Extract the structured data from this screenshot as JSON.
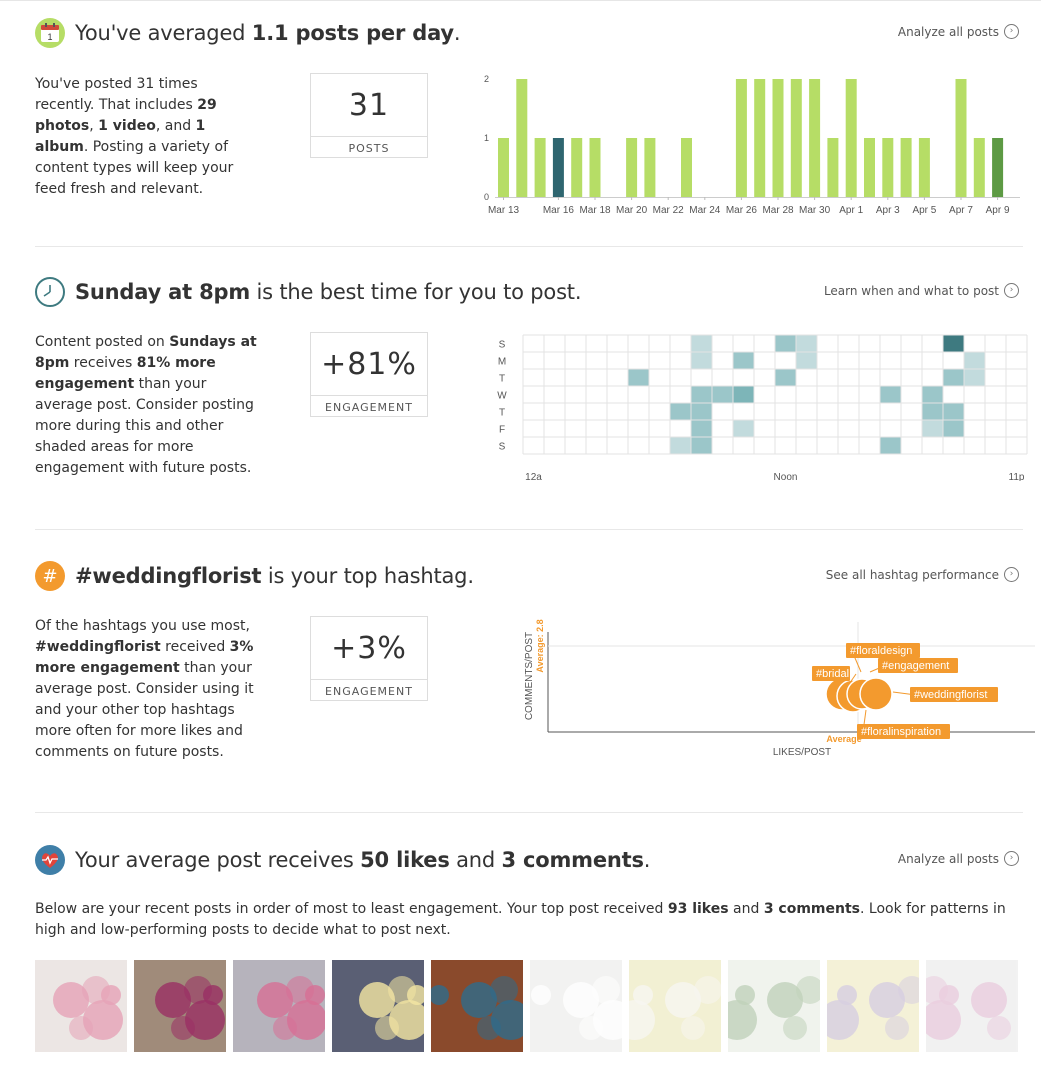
{
  "sections": {
    "posts": {
      "headline_pre": "You've averaged ",
      "headline_bold": "1.1 posts per day",
      "headline_post": ".",
      "link": "Analyze all posts",
      "desc_1": "You've posted 31 times recently. That includes ",
      "desc_photos": "29 photos",
      "desc_2": ", ",
      "desc_video": "1 video",
      "desc_3": ", and ",
      "desc_album": "1 album",
      "desc_4": ". Posting a variety of content types will keep your feed fresh and relevant.",
      "stat_value": "31",
      "stat_label": "POSTS"
    },
    "time": {
      "headline_bold": "Sunday at 8pm",
      "headline_post": " is the best time for you to post.",
      "link": "Learn when and what to post",
      "desc_1": "Content posted on ",
      "desc_b1": "Sundays at 8pm",
      "desc_2": " receives ",
      "desc_b2": "81% more engagement",
      "desc_3": " than your average post. Consider posting more during this and other shaded areas for more engagement with future posts.",
      "stat_value": "+81%",
      "stat_label": "ENGAGEMENT"
    },
    "hashtag": {
      "icon_glyph": "#",
      "headline_bold": "#weddingflorist",
      "headline_post": " is your top hashtag.",
      "link": "See all hashtag performance",
      "desc_1": "Of the hashtags you use most, ",
      "desc_b1": "#weddingflorist",
      "desc_2": " received ",
      "desc_b2": "3% more engagement",
      "desc_3": " than your average post. Consider using it and your other top hashtags more often for more likes and comments on future posts.",
      "stat_value": "+3%",
      "stat_label": "ENGAGEMENT"
    },
    "likes": {
      "headline_pre": "Your average post receives ",
      "headline_b1": "50 likes",
      "headline_mid": " and ",
      "headline_b2": "3 comments",
      "headline_post": ".",
      "link": "Analyze all posts",
      "desc_1": "Below are your recent posts in order of most to least engagement. Your top post received ",
      "desc_b1": "93 likes",
      "desc_2": " and ",
      "desc_b2": "3 comments",
      "desc_3": ". Look for patterns in high and low-performing posts to decide what to post next."
    }
  },
  "chart_data": [
    {
      "type": "bar",
      "categories": [
        "Mar 13",
        "Mar 14",
        "Mar 15",
        "Mar 16",
        "Mar 17",
        "Mar 18",
        "Mar 19",
        "Mar 20",
        "Mar 21",
        "Mar 22",
        "Mar 23",
        "Mar 24",
        "Mar 25",
        "Mar 26",
        "Mar 27",
        "Mar 28",
        "Mar 29",
        "Mar 30",
        "Mar 31",
        "Apr 1",
        "Apr 2",
        "Apr 3",
        "Apr 4",
        "Apr 5",
        "Apr 6",
        "Apr 7",
        "Apr 8",
        "Apr 9"
      ],
      "tick_labels": [
        "Mar 13",
        "Mar 16",
        "Mar 18",
        "Mar 20",
        "Mar 22",
        "Mar 24",
        "Mar 26",
        "Mar 28",
        "Mar 30",
        "Apr 1",
        "Apr 3",
        "Apr 5",
        "Apr 7",
        "Apr 9"
      ],
      "values": [
        1,
        2,
        1,
        1,
        1,
        1,
        0,
        1,
        1,
        0,
        1,
        0,
        0,
        2,
        2,
        2,
        2,
        2,
        1,
        2,
        1,
        1,
        1,
        1,
        0,
        2,
        1,
        1
      ],
      "highlight": {
        "Mar 16": "#2f6670",
        "Apr 9": "#5d9a44"
      },
      "ylim": [
        0,
        2
      ],
      "yticks": [
        "0",
        "1",
        "2"
      ],
      "colors": {
        "bar": "#b6dd66"
      }
    },
    {
      "type": "heatmap",
      "rows": [
        "S",
        "M",
        "T",
        "W",
        "T",
        "F",
        "S"
      ],
      "columns": 24,
      "x_labels": [
        "12a",
        "Noon",
        "11p"
      ],
      "cells": [
        [
          0,
          8,
          1
        ],
        [
          0,
          12,
          2
        ],
        [
          0,
          13,
          1
        ],
        [
          0,
          20,
          3
        ],
        [
          1,
          8,
          1
        ],
        [
          1,
          10,
          2
        ],
        [
          1,
          13,
          1
        ],
        [
          1,
          21,
          1
        ],
        [
          2,
          5,
          2
        ],
        [
          2,
          12,
          2
        ],
        [
          2,
          20,
          2
        ],
        [
          2,
          21,
          1
        ],
        [
          3,
          8,
          2
        ],
        [
          3,
          9,
          2
        ],
        [
          3,
          10,
          3
        ],
        [
          3,
          17,
          2
        ],
        [
          3,
          19,
          2
        ],
        [
          4,
          7,
          2
        ],
        [
          4,
          8,
          2
        ],
        [
          4,
          19,
          2
        ],
        [
          4,
          20,
          2
        ],
        [
          5,
          8,
          2
        ],
        [
          5,
          10,
          1
        ],
        [
          5,
          19,
          1
        ],
        [
          5,
          20,
          2
        ],
        [
          6,
          7,
          1
        ],
        [
          6,
          8,
          2
        ],
        [
          6,
          17,
          2
        ]
      ],
      "colors": {
        "level1": "#c2dbdd",
        "level2": "#9bc6c9",
        "level3": "#7db5b8",
        "top": "#3e7a80"
      }
    },
    {
      "type": "scatter",
      "xlabel": "LIKES/POST",
      "ylabel": "COMMENTS/POST",
      "x_average_label": "Average",
      "y_average_label": "Average: 2.8",
      "points": [
        {
          "label": "#floraldesign",
          "x": 0.69,
          "y": 0.44
        },
        {
          "label": "#bridal",
          "x": 0.64,
          "y": 0.44
        },
        {
          "label": "#engagement",
          "x": 0.66,
          "y": 0.44
        },
        {
          "label": "#weddingflorist",
          "x": 0.72,
          "y": 0.44
        },
        {
          "label": "#floralinspiration",
          "x": 0.66,
          "y": 0.42
        }
      ],
      "colors": {
        "point": "#f39a2e"
      }
    }
  ],
  "photos": [
    {
      "name": "baby-flower-crown",
      "bg": "#ece6e4",
      "accent": "#e6a3b6"
    },
    {
      "name": "pink-bouquet",
      "bg": "#a08b7a",
      "accent": "#9a2f64"
    },
    {
      "name": "pink-dahlias",
      "bg": "#b6b3bc",
      "accent": "#d76f95"
    },
    {
      "name": "yellow-flowers",
      "bg": "#5a5f74",
      "accent": "#f4e6a2"
    },
    {
      "name": "couple-photo",
      "bg": "#8a4a2c",
      "accent": "#2e6b8c"
    },
    {
      "name": "white-table",
      "bg": "#e9e9e6",
      "accent": "#ffffff"
    },
    {
      "name": "yellow-white-bouquet",
      "bg": "#e9e4b0",
      "accent": "#f1efe6"
    },
    {
      "name": "green-foliage",
      "bg": "#e5ebe0",
      "accent": "#8fae83"
    },
    {
      "name": "yellow-pink-arrangement",
      "bg": "#ece7b8",
      "accent": "#b6a8c8"
    },
    {
      "name": "pink-roses",
      "bg": "#e7e7e7",
      "accent": "#d9a5c4"
    }
  ]
}
